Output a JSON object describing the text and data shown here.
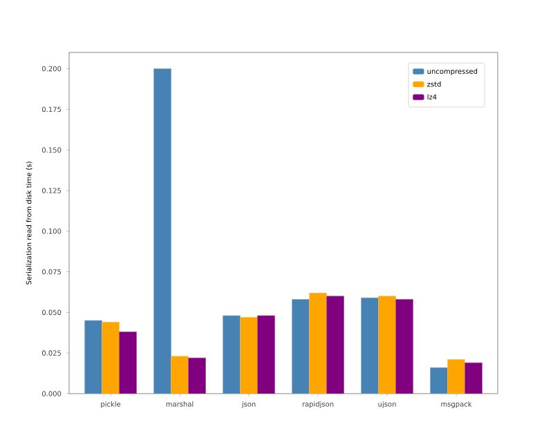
{
  "chart_data": {
    "type": "bar",
    "ylabel": "Serialization read from disk time (s)",
    "categories": [
      "pickle",
      "marshal",
      "json",
      "rapidjson",
      "ujson",
      "msgpack"
    ],
    "series": [
      {
        "name": "uncompressed",
        "color": "#4682b4",
        "values": [
          0.045,
          0.2,
          0.048,
          0.058,
          0.059,
          0.016
        ]
      },
      {
        "name": "zstd",
        "color": "#ffa500",
        "values": [
          0.044,
          0.023,
          0.047,
          0.062,
          0.06,
          0.021
        ]
      },
      {
        "name": "lz4",
        "color": "#800080",
        "values": [
          0.038,
          0.022,
          0.048,
          0.06,
          0.058,
          0.019
        ]
      }
    ],
    "ylim": [
      0,
      0.21
    ],
    "yticks": [
      {
        "value": 0,
        "label": "0.000"
      },
      {
        "value": 0.025,
        "label": "0.025"
      },
      {
        "value": 0.05,
        "label": "0.050"
      },
      {
        "value": 0.075,
        "label": "0.075"
      },
      {
        "value": 0.1,
        "label": "0.100"
      },
      {
        "value": 0.125,
        "label": "0.125"
      },
      {
        "value": 0.15,
        "label": "0.150"
      },
      {
        "value": 0.175,
        "label": "0.175"
      },
      {
        "value": 0.2,
        "label": "0.200"
      }
    ],
    "grid": false,
    "legend": "top right"
  }
}
